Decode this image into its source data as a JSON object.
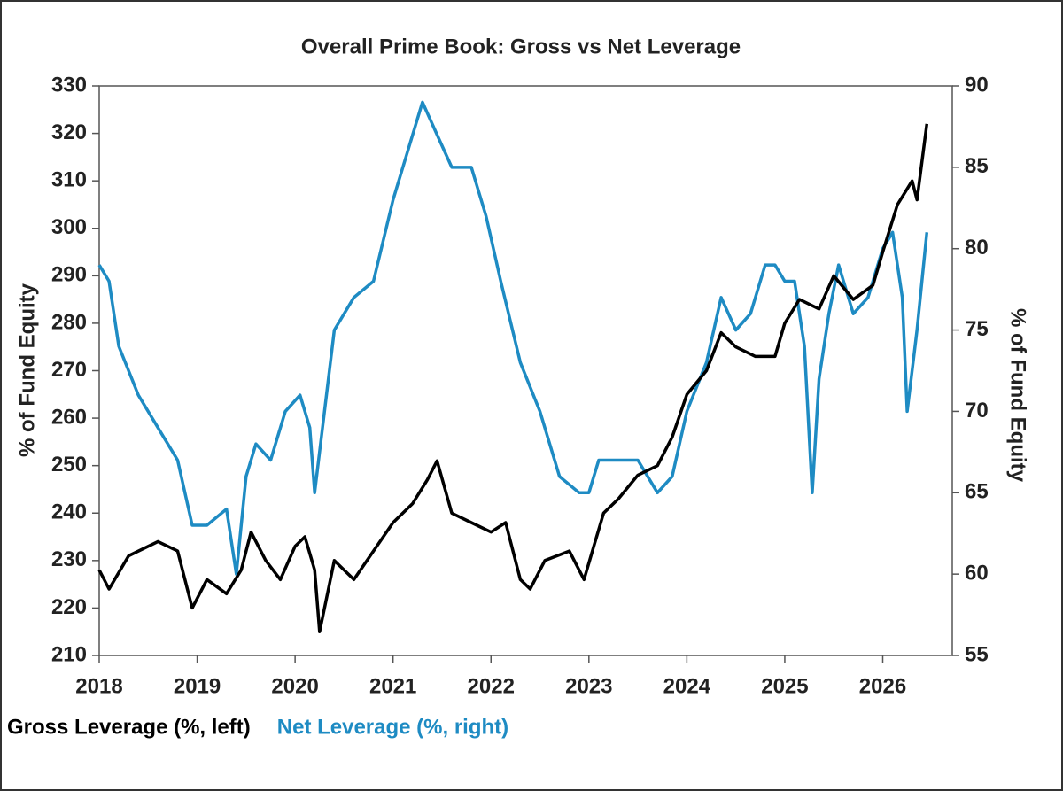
{
  "chart_data": {
    "type": "line",
    "title": "Overall Prime Book: Gross vs Net Leverage",
    "y_label": "% of Fund Equity",
    "y2_label": "% of Fund Equity",
    "xlim": [
      2018,
      2026.71
    ],
    "xticks": [
      2018,
      2019,
      2020,
      2021,
      2022,
      2023,
      2024,
      2025,
      2026
    ],
    "ylim": [
      210,
      330
    ],
    "yticks": [
      210,
      220,
      230,
      240,
      250,
      260,
      270,
      280,
      290,
      300,
      310,
      320,
      330
    ],
    "y2lim": [
      55,
      90
    ],
    "y2ticks": [
      55,
      60,
      65,
      70,
      75,
      80,
      85,
      90
    ],
    "series": [
      {
        "name": "Gross Leverage (%, left)",
        "color": "#000000",
        "x": [
          2018.0,
          2018.1,
          2018.3,
          2018.6,
          2018.8,
          2018.95,
          2019.1,
          2019.3,
          2019.45,
          2019.55,
          2019.7,
          2019.85,
          2020.0,
          2020.1,
          2020.2,
          2020.25,
          2020.4,
          2020.6,
          2020.8,
          2021.0,
          2021.2,
          2021.35,
          2021.45,
          2021.6,
          2021.8,
          2022.0,
          2022.15,
          2022.3,
          2022.4,
          2022.55,
          2022.8,
          2022.95,
          2023.05,
          2023.15,
          2023.3,
          2023.5,
          2023.7,
          2023.85,
          2024.0,
          2024.2,
          2024.35,
          2024.5,
          2024.7,
          2024.9,
          2025.0,
          2025.15,
          2025.35,
          2025.5,
          2025.7,
          2025.9,
          2026.0,
          2026.15,
          2026.3,
          2026.35,
          2026.45
        ],
        "values": [
          228,
          224,
          231,
          234,
          232,
          220,
          226,
          223,
          228,
          236,
          230,
          226,
          233,
          235,
          228,
          215,
          230,
          226,
          232,
          238,
          242,
          247,
          251,
          240,
          238,
          236,
          238,
          226,
          224,
          230,
          232,
          226,
          233,
          240,
          243,
          248,
          250,
          256,
          265,
          270,
          278,
          275,
          273,
          273,
          280,
          285,
          283,
          290,
          285,
          288,
          295,
          305,
          310,
          306,
          322
        ]
      },
      {
        "name": "Net Leverage (%, right)",
        "color": "#1e8bc3",
        "axis": "y2",
        "x": [
          2018.0,
          2018.1,
          2018.2,
          2018.4,
          2018.6,
          2018.8,
          2018.95,
          2019.1,
          2019.3,
          2019.4,
          2019.5,
          2019.6,
          2019.75,
          2019.9,
          2020.05,
          2020.15,
          2020.2,
          2020.3,
          2020.4,
          2020.6,
          2020.8,
          2021.0,
          2021.15,
          2021.3,
          2021.45,
          2021.6,
          2021.8,
          2021.95,
          2022.1,
          2022.3,
          2022.5,
          2022.7,
          2022.9,
          2023.0,
          2023.1,
          2023.3,
          2023.5,
          2023.7,
          2023.85,
          2024.0,
          2024.2,
          2024.35,
          2024.5,
          2024.65,
          2024.8,
          2024.9,
          2025.0,
          2025.1,
          2025.2,
          2025.28,
          2025.35,
          2025.45,
          2025.55,
          2025.7,
          2025.85,
          2026.0,
          2026.1,
          2026.2,
          2026.25,
          2026.35,
          2026.45
        ],
        "values": [
          79,
          78,
          74,
          71,
          69,
          67,
          63,
          63,
          64,
          60,
          66,
          68,
          67,
          70,
          71,
          69,
          65,
          70,
          75,
          77,
          78,
          83,
          86,
          89,
          87,
          85,
          85,
          82,
          78,
          73,
          70,
          66,
          65,
          65,
          67,
          67,
          67,
          65,
          66,
          70,
          73,
          77,
          75,
          76,
          79,
          79,
          78,
          78,
          74,
          65,
          72,
          76,
          79,
          76,
          77,
          80,
          81,
          77,
          70,
          75,
          81
        ]
      }
    ]
  }
}
